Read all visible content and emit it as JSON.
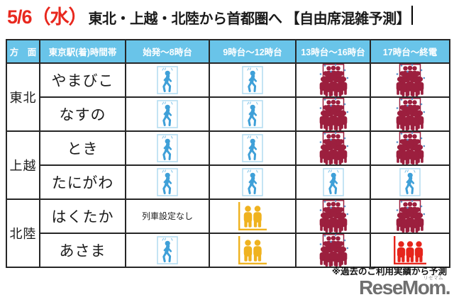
{
  "title": {
    "date": "5/6（水）",
    "text": "東北・上越・北陸から首都圏へ 【自由席混雑予測】"
  },
  "colors": {
    "title_date": "#e8281e",
    "header_bg": "#69c4e9",
    "header_text": "#ffffff",
    "border": "#262626",
    "text": "#1a1a1a",
    "level_low": "#3fa0d8",
    "level_low_box": "#b5ddf1",
    "level_low_mark": "#8ccaec",
    "level_medium": "#efb21f",
    "level_high": "#9c1f3e",
    "level_full": "#e6251c",
    "sweat_drop": "#5b8fc6",
    "logo_gray": "#6f6f6f"
  },
  "table": {
    "headers": [
      "方　面",
      "東京駅(着)時間帯",
      "始発～8時台",
      "9時台～12時台",
      "13時台～16時台",
      "17時台～終電"
    ],
    "no_service_label": "列車設定なし",
    "groups": [
      {
        "direction": "東北",
        "rows": [
          {
            "train": "やまびこ",
            "cells": [
              "low",
              "low",
              "high",
              "high"
            ]
          },
          {
            "train": "なすの",
            "cells": [
              "low",
              "low",
              "high",
              "high"
            ]
          }
        ]
      },
      {
        "direction": "上越",
        "rows": [
          {
            "train": "とき",
            "cells": [
              "low",
              "low",
              "high",
              "high"
            ]
          },
          {
            "train": "たにがわ",
            "cells": [
              "low",
              "low",
              "low",
              "low"
            ]
          }
        ]
      },
      {
        "direction": "北陸",
        "rows": [
          {
            "train": "はくたか",
            "cells": [
              "none",
              "medium",
              "high",
              "high"
            ]
          },
          {
            "train": "あさま",
            "cells": [
              "low",
              "medium",
              "high",
              "full"
            ]
          }
        ]
      }
    ]
  },
  "icons": {
    "low": "walking-person-icon",
    "medium": "two-people-icon",
    "high": "crowd-icon",
    "full": "three-people-icon"
  },
  "footnote": "※過去のご利用実績から予測",
  "logo": {
    "text": "ReseMom.",
    "ruby": "リセマム"
  },
  "chart_data": {
    "type": "table",
    "title": "5/6（水）東北・上越・北陸から首都圏へ 【自由席混雑予測】",
    "columns": [
      "方面",
      "東京駅(着)時間帯",
      "始発～8時台",
      "9時台～12時台",
      "13時台～16時台",
      "17時台～終電"
    ],
    "rows": [
      {
        "direction": "東北",
        "train": "やまびこ",
        "levels": [
          "low",
          "low",
          "high",
          "high"
        ]
      },
      {
        "direction": "東北",
        "train": "なすの",
        "levels": [
          "low",
          "low",
          "high",
          "high"
        ]
      },
      {
        "direction": "上越",
        "train": "とき",
        "levels": [
          "low",
          "low",
          "high",
          "high"
        ]
      },
      {
        "direction": "上越",
        "train": "たにがわ",
        "levels": [
          "low",
          "low",
          "low",
          "low"
        ]
      },
      {
        "direction": "北陸",
        "train": "はくたか",
        "levels": [
          "none",
          "medium",
          "high",
          "high"
        ]
      },
      {
        "direction": "北陸",
        "train": "あさま",
        "levels": [
          "low",
          "medium",
          "high",
          "full"
        ]
      }
    ],
    "level_icons": {
      "low": "walking-person-icon",
      "medium": "two-people-icon",
      "high": "crowd-icon",
      "full": "three-people-icon",
      "none": "列車設定なし"
    },
    "footnote": "※過去のご利用実績から予測"
  }
}
